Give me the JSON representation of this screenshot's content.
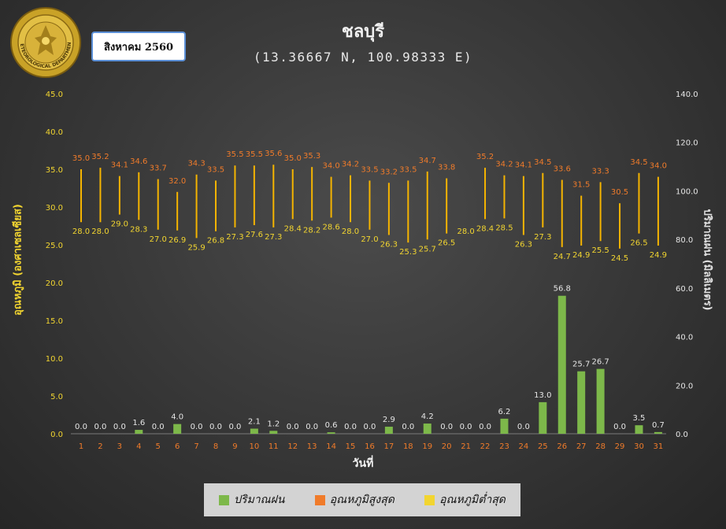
{
  "header": {
    "title": "ชลบุรี",
    "subtitle": "(13.36667 N, 100.98333 E)",
    "month": "สิงหาคม 2560",
    "logo_text": "METEOROLOGICAL DEPARTMENT"
  },
  "colors": {
    "rain": "#7db84a",
    "tmax_label": "#f07b2a",
    "tmin_label": "#f2d530",
    "range_line": "#f5b400",
    "left_tick": "#f2d530",
    "right_tick": "#e6e6e6",
    "day_tick": "#f07b2a",
    "rain_label": "#e6e6e6"
  },
  "legend": {
    "rain": "ปริมาณฝน",
    "tmax": "อุณหภูมิสูงสุด",
    "tmin": "อุณหภูมิต่ำสุด"
  },
  "chart_data": {
    "type": "bar+range",
    "xlabel": "วันที่",
    "ylabel_left": "อุณหภูมิ (องศาเซลเซียส)",
    "ylabel_right": "ปริมาณฝน (มิลลิเมตร)",
    "left_axis": {
      "min": 0,
      "max": 45,
      "step": 5,
      "ticks": [
        "0.0",
        "5.0",
        "10.0",
        "15.0",
        "20.0",
        "25.0",
        "30.0",
        "35.0",
        "40.0",
        "45.0"
      ]
    },
    "right_axis": {
      "min": 0,
      "max": 140,
      "step": 20,
      "ticks": [
        "0.0",
        "20.0",
        "40.0",
        "60.0",
        "80.0",
        "100.0",
        "120.0",
        "140.0"
      ]
    },
    "grid": false,
    "legend_position": "bottom",
    "days": [
      1,
      2,
      3,
      4,
      5,
      6,
      7,
      8,
      9,
      10,
      11,
      12,
      13,
      14,
      15,
      16,
      17,
      18,
      19,
      20,
      21,
      22,
      23,
      24,
      25,
      26,
      27,
      28,
      29,
      30,
      31
    ],
    "series": [
      {
        "name": "ปริมาณฝน",
        "axis": "right",
        "type": "bar",
        "values": [
          0.0,
          0.0,
          0.0,
          1.6,
          0.0,
          4.0,
          0.0,
          0.0,
          0.0,
          2.1,
          1.2,
          0.0,
          0.0,
          0.6,
          0.0,
          0.0,
          2.9,
          0.0,
          4.2,
          0.0,
          0.0,
          0.0,
          6.2,
          0.0,
          13.0,
          56.8,
          25.7,
          26.7,
          0.0,
          3.5,
          0.7
        ]
      },
      {
        "name": "อุณหภูมิสูงสุด",
        "axis": "left",
        "type": "range-top",
        "values": [
          35.0,
          35.2,
          34.1,
          34.6,
          33.7,
          32.0,
          34.3,
          33.5,
          35.5,
          35.5,
          35.6,
          35.0,
          35.3,
          34.0,
          34.2,
          33.5,
          33.2,
          33.5,
          34.7,
          33.8,
          null,
          35.2,
          34.2,
          34.1,
          34.5,
          33.6,
          31.5,
          33.3,
          30.5,
          34.5,
          34.0
        ]
      },
      {
        "name": "อุณหภูมิต่ำสุด",
        "axis": "left",
        "type": "range-bottom",
        "values": [
          28.0,
          28.0,
          29.0,
          28.3,
          27.0,
          26.9,
          25.9,
          26.8,
          27.3,
          27.6,
          27.3,
          28.4,
          28.2,
          28.6,
          28.0,
          27.0,
          26.3,
          25.3,
          25.7,
          26.5,
          28.0,
          28.4,
          28.5,
          26.3,
          27.3,
          24.7,
          24.9,
          25.5,
          24.5,
          26.5,
          24.9
        ]
      }
    ]
  }
}
